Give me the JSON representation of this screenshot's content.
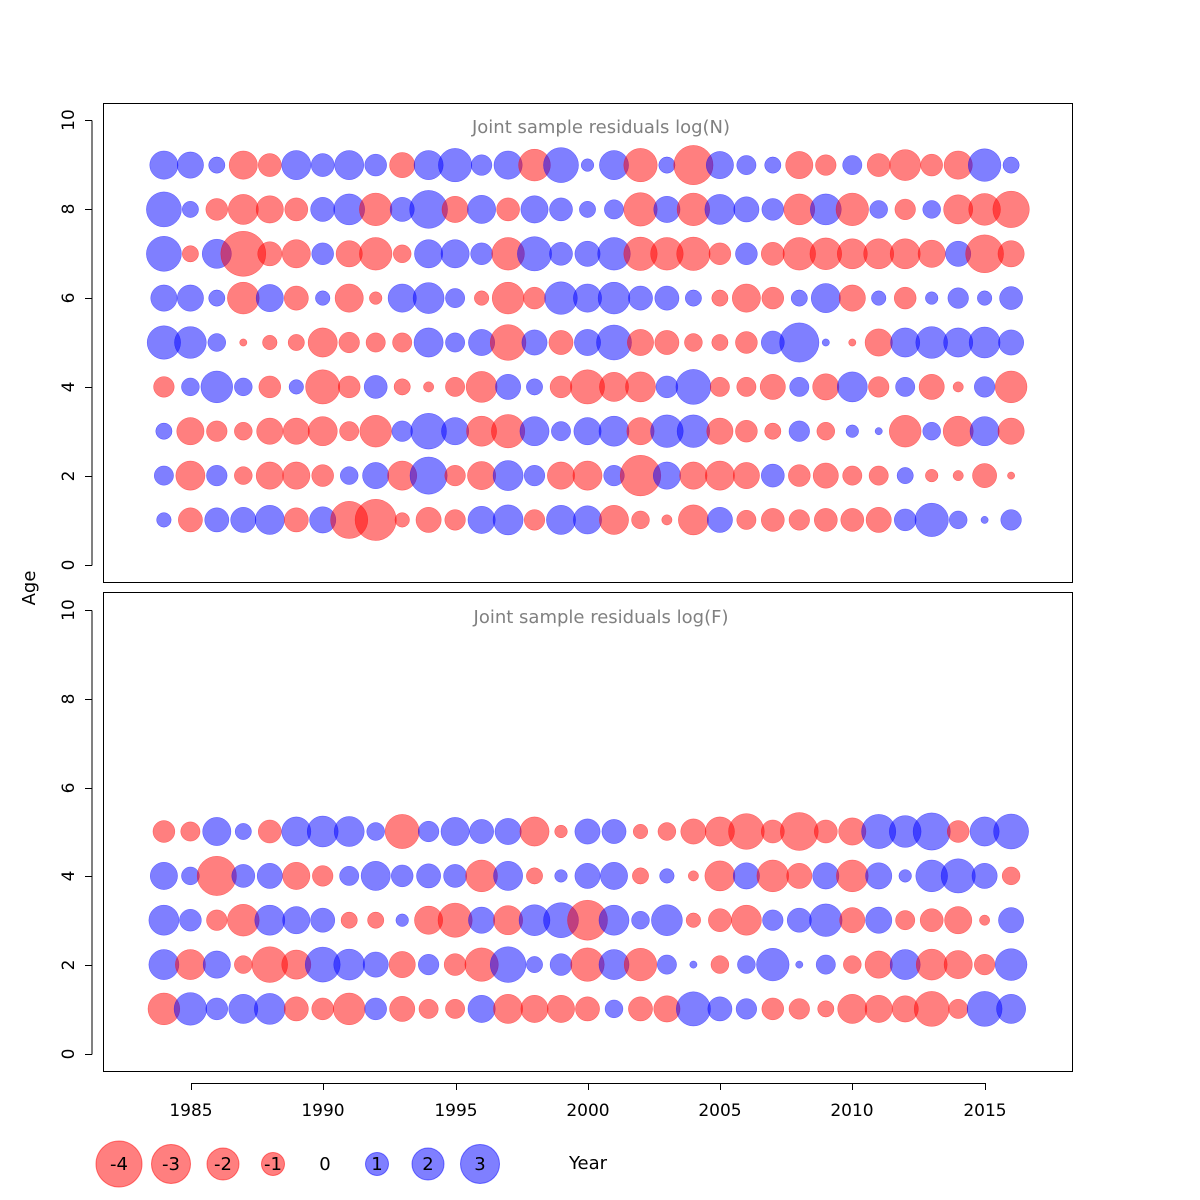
{
  "chart_data": [
    {
      "type": "bubble",
      "title": "Joint sample residuals log(N)",
      "xlabel": "Year",
      "ylabel": "Age",
      "xlim": [
        1981.7,
        2018.3
      ],
      "ylim": [
        -0.4,
        10.4
      ],
      "x_ticks": [
        1985,
        1990,
        1995,
        2000,
        2005,
        2010,
        2015
      ],
      "y_ticks": [
        0,
        2,
        4,
        6,
        8,
        10
      ],
      "years": [
        1984,
        1985,
        1986,
        1987,
        1988,
        1989,
        1990,
        1991,
        1992,
        1993,
        1994,
        1995,
        1996,
        1997,
        1998,
        1999,
        2000,
        2001,
        2002,
        2003,
        2004,
        2005,
        2006,
        2007,
        2008,
        2009,
        2010,
        2011,
        2012,
        2013,
        2014,
        2015,
        2016
      ],
      "ages": [
        1,
        2,
        3,
        4,
        5,
        6,
        7,
        8,
        9
      ],
      "residuals": [
        [
          0.4,
          -1.1,
          1.1,
          1.2,
          1.6,
          -1.1,
          1.3,
          -2.6,
          -3.2,
          -0.4,
          -1.2,
          -0.8,
          1.4,
          1.7,
          -0.8,
          1.6,
          1.5,
          -1.6,
          -0.6,
          -0.2,
          -1.7,
          1.2,
          -0.7,
          -1.0,
          -0.8,
          -1.0,
          -1.0,
          -1.2,
          0.9,
          2.1,
          0.6,
          0.1,
          0.8
        ],
        [
          0.7,
          -1.6,
          0.8,
          -0.6,
          -1.4,
          -1.4,
          -0.9,
          0.6,
          1.3,
          -1.6,
          2.6,
          -0.8,
          -1.5,
          1.7,
          0.8,
          -1.4,
          -1.6,
          0.8,
          -3.1,
          1.4,
          -1.4,
          -1.6,
          -1.3,
          1.0,
          -0.9,
          -1.2,
          -0.7,
          -0.7,
          0.5,
          -0.3,
          -0.2,
          -1.1,
          -0.1
        ],
        [
          0.5,
          -1.4,
          -0.8,
          -0.6,
          -1.3,
          -1.3,
          -1.6,
          -0.7,
          -1.9,
          0.8,
          2.4,
          1.4,
          -1.7,
          -2.1,
          1.6,
          0.7,
          1.4,
          1.7,
          -1.4,
          2.0,
          2.0,
          -1.3,
          -0.9,
          -0.5,
          0.8,
          -0.6,
          0.3,
          0.1,
          -1.9,
          0.6,
          -1.7,
          1.6,
          -1.3
        ],
        [
          -0.8,
          0.6,
          1.9,
          0.6,
          -0.9,
          0.4,
          -2.2,
          -0.9,
          1.0,
          -0.5,
          -0.2,
          -0.7,
          -1.8,
          1.2,
          0.5,
          -0.9,
          -2.2,
          -1.6,
          -1.7,
          0.9,
          2.3,
          -0.7,
          -0.7,
          -1.2,
          0.7,
          -1.3,
          1.7,
          -0.8,
          0.7,
          -1.2,
          -0.2,
          0.8,
          -1.9
        ],
        [
          2.1,
          1.9,
          0.6,
          -0.1,
          -0.4,
          -0.5,
          -1.6,
          -0.8,
          -0.7,
          -0.7,
          1.6,
          0.7,
          1.3,
          -2.4,
          1.2,
          -1.1,
          1.3,
          2.3,
          -1.3,
          -1.1,
          -0.6,
          -0.5,
          -0.9,
          1.0,
          2.9,
          0.1,
          -0.1,
          -1.4,
          1.6,
          1.9,
          1.6,
          1.8,
          1.2
        ],
        [
          1.3,
          1.3,
          0.5,
          -1.9,
          1.4,
          -1.1,
          0.4,
          -1.5,
          -0.3,
          1.5,
          1.8,
          0.7,
          -0.4,
          -1.9,
          -0.9,
          2.0,
          1.5,
          1.9,
          1.1,
          1.1,
          0.5,
          -0.5,
          -1.5,
          -0.9,
          0.5,
          1.6,
          -1.3,
          0.4,
          -0.9,
          0.3,
          0.8,
          0.4,
          1.0
        ],
        [
          2.3,
          -0.5,
          1.6,
          -3.8,
          -1.1,
          -1.5,
          0.9,
          -1.3,
          -2.0,
          -0.6,
          1.5,
          1.5,
          0.9,
          -2.0,
          2.2,
          1.0,
          1.2,
          2.0,
          -2.1,
          -2.0,
          -2.1,
          -0.9,
          0.9,
          -1.0,
          -2.0,
          -1.9,
          -1.7,
          -1.7,
          -1.7,
          -1.4,
          1.2,
          -2.7,
          -1.3
        ],
        [
          2.3,
          0.5,
          -0.9,
          -1.7,
          -1.4,
          -1.0,
          1.1,
          1.8,
          -2.0,
          1.1,
          2.7,
          -1.3,
          1.5,
          -1.0,
          1.4,
          1.0,
          0.5,
          0.7,
          -2.1,
          1.3,
          -2.0,
          1.7,
          1.2,
          0.9,
          -1.8,
          1.8,
          -2.0,
          0.6,
          -0.8,
          0.6,
          -1.6,
          -1.9,
          -2.5
        ],
        [
          1.5,
          1.3,
          0.5,
          -1.5,
          -1.0,
          1.6,
          1.0,
          1.6,
          0.9,
          -1.2,
          1.6,
          2.1,
          0.8,
          1.5,
          -1.9,
          2.3,
          0.3,
          1.6,
          -2.1,
          0.5,
          -2.9,
          1.4,
          0.7,
          0.5,
          -1.4,
          -0.8,
          0.7,
          -1.0,
          -1.8,
          -0.9,
          -1.5,
          2.0,
          0.5
        ]
      ]
    },
    {
      "type": "bubble",
      "title": "Joint sample residuals log(F)",
      "xlabel": "Year",
      "ylabel": "Age",
      "xlim": [
        1981.7,
        2018.3
      ],
      "ylim": [
        -0.4,
        10.4
      ],
      "x_ticks": [
        1985,
        1990,
        1995,
        2000,
        2005,
        2010,
        2015
      ],
      "y_ticks": [
        0,
        2,
        4,
        6,
        8,
        10
      ],
      "years": [
        1984,
        1985,
        1986,
        1987,
        1988,
        1989,
        1990,
        1991,
        1992,
        1993,
        1994,
        1995,
        1996,
        1997,
        1998,
        1999,
        2000,
        2001,
        2002,
        2003,
        2004,
        2005,
        2006,
        2007,
        2008,
        2009,
        2010,
        2011,
        2012,
        2013,
        2014,
        2015,
        2016
      ],
      "ages": [
        1,
        2,
        3,
        4,
        5
      ],
      "residuals": [
        [
          -1.9,
          2.0,
          0.9,
          1.6,
          1.8,
          -1.1,
          -0.9,
          -1.9,
          0.9,
          -1.2,
          -0.7,
          -0.7,
          1.4,
          -1.6,
          -1.4,
          -1.4,
          -1.1,
          0.6,
          -1.1,
          -1.3,
          2.2,
          1.1,
          0.8,
          -0.9,
          -0.8,
          -0.5,
          -1.6,
          -1.4,
          -1.3,
          -2.3,
          -0.7,
          2.3,
          1.6
        ],
        [
          1.7,
          -1.7,
          1.4,
          -0.6,
          -2.4,
          -1.6,
          2.3,
          1.8,
          1.2,
          -1.3,
          0.8,
          -0.9,
          -2.1,
          2.4,
          0.5,
          0.9,
          -2.1,
          1.7,
          -2.0,
          0.7,
          0.1,
          -0.6,
          0.6,
          2.0,
          0.1,
          0.7,
          -0.6,
          -1.4,
          1.7,
          -1.8,
          -1.5,
          -0.8,
          1.9
        ],
        [
          1.7,
          0.9,
          -0.8,
          -1.9,
          1.7,
          1.4,
          1.1,
          -0.5,
          -0.5,
          0.3,
          -1.5,
          -2.2,
          1.3,
          -1.6,
          1.8,
          2.3,
          -3.0,
          1.7,
          0.6,
          1.8,
          -0.4,
          -1.0,
          -1.7,
          0.8,
          1.1,
          2.0,
          -1.2,
          1.3,
          -0.7,
          -1.0,
          -1.4,
          -0.2,
          1.2
        ],
        [
          1.4,
          0.6,
          -2.9,
          1.0,
          1.2,
          -1.4,
          -0.8,
          0.7,
          1.6,
          0.9,
          1.1,
          1.0,
          -1.9,
          1.6,
          -0.5,
          0.3,
          1.2,
          1.4,
          -0.5,
          0.4,
          -0.2,
          -1.7,
          1.3,
          -1.9,
          -1.2,
          1.3,
          -1.9,
          1.3,
          0.3,
          1.9,
          2.2,
          1.2,
          -0.6
        ],
        [
          -0.9,
          -0.7,
          1.5,
          0.5,
          -1.0,
          1.6,
          1.8,
          1.7,
          0.6,
          -2.2,
          0.8,
          1.5,
          1.1,
          1.3,
          -1.6,
          -0.3,
          1.2,
          1.1,
          -0.4,
          -0.6,
          -1.2,
          -1.6,
          -2.4,
          -1.0,
          -2.7,
          -1.0,
          -1.4,
          2.2,
          1.9,
          2.6,
          -0.9,
          1.6,
          2.3
        ]
      ]
    }
  ],
  "panels": [
    {
      "title": "Joint sample residuals log(N)",
      "y_tick_labels": [
        "0",
        "2",
        "4",
        "6",
        "8",
        "10"
      ]
    },
    {
      "title": "Joint sample residuals log(F)",
      "y_tick_labels": [
        "0",
        "2",
        "4",
        "6",
        "8",
        "10"
      ],
      "x_tick_labels": [
        "1985",
        "1990",
        "1995",
        "2000",
        "2005",
        "2010",
        "2015"
      ]
    }
  ],
  "axis": {
    "ylabel": "Age",
    "xlabel": "Year"
  },
  "legend": {
    "items": [
      {
        "value": -4,
        "label": "-4"
      },
      {
        "value": -3,
        "label": "-3"
      },
      {
        "value": -2,
        "label": "-2"
      },
      {
        "value": -1,
        "label": "-1"
      },
      {
        "value": 0,
        "label": "0"
      },
      {
        "value": 1,
        "label": "1"
      },
      {
        "value": 2,
        "label": "2"
      },
      {
        "value": 3,
        "label": "3"
      }
    ]
  },
  "colors": {
    "negative_fill": "#ff0000",
    "negative_stroke": "#ff0000",
    "positive_fill": "#0000ff",
    "positive_stroke": "#0000ff",
    "panel_title": "#808080",
    "frame": "#000000"
  }
}
